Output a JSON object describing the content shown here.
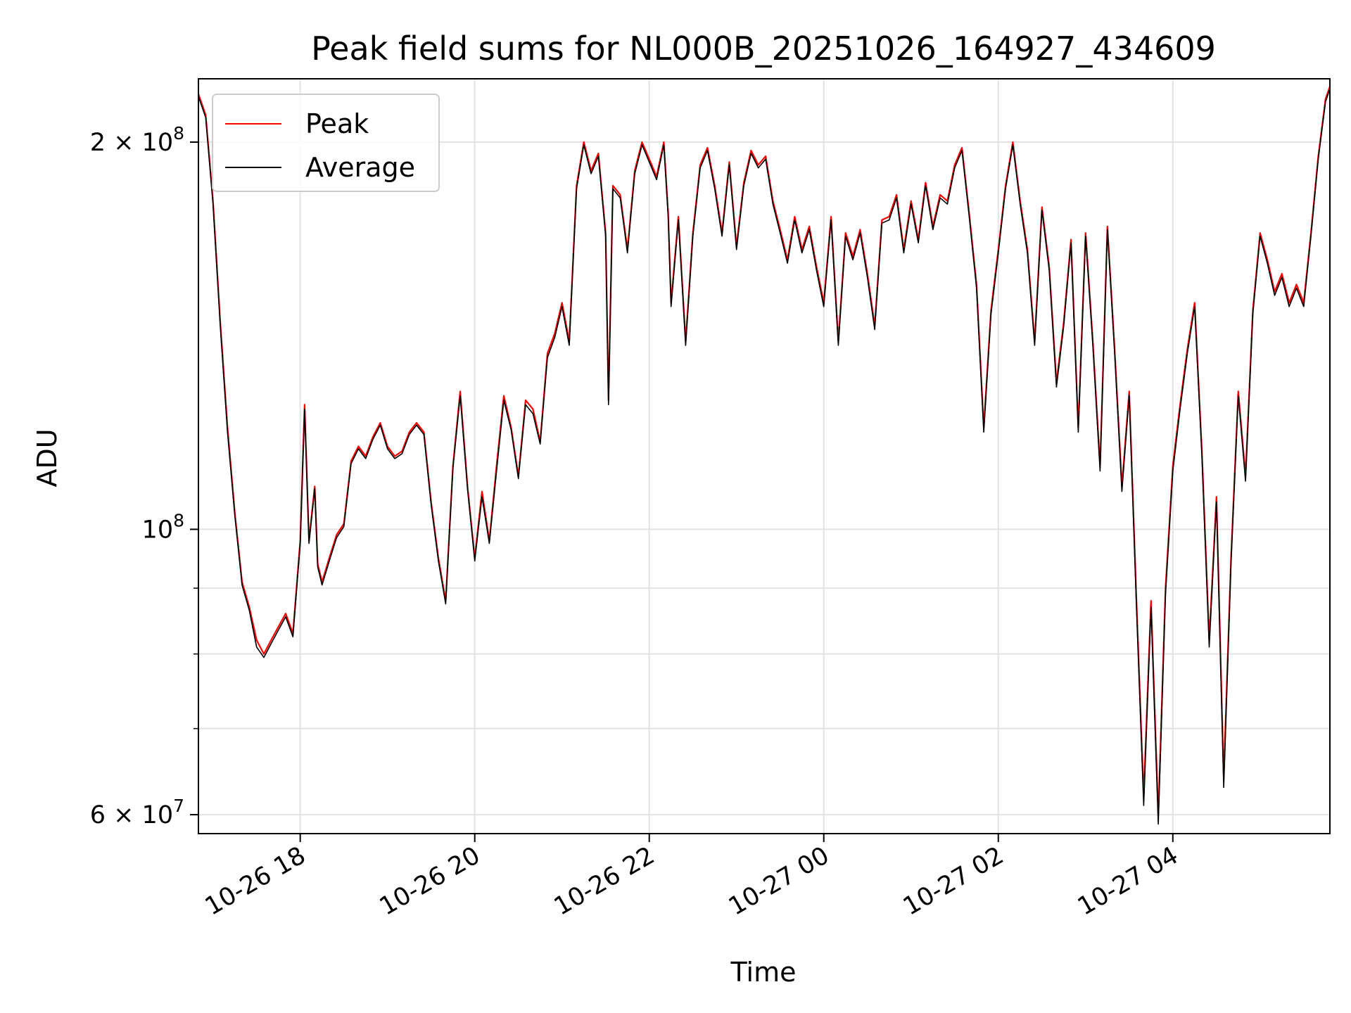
{
  "chart_data": {
    "type": "line",
    "title": "Peak field sums for NL000B_20251026_164927_434609",
    "xlabel": "Time",
    "ylabel": "ADU",
    "y_scale": "log",
    "ylim": [
      58000000,
      224000000
    ],
    "xlim": [
      "2025-10-26 16:50",
      "2025-10-27 05:48"
    ],
    "grid": true,
    "legend_position": "top-left",
    "x_ticks": [
      {
        "label": "10-26 18",
        "t": "2025-10-26 18:00"
      },
      {
        "label": "10-26 20",
        "t": "2025-10-26 20:00"
      },
      {
        "label": "10-26 22",
        "t": "2025-10-26 22:00"
      },
      {
        "label": "10-27 00",
        "t": "2025-10-27 00:00"
      },
      {
        "label": "10-27 02",
        "t": "2025-10-27 02:00"
      },
      {
        "label": "10-27 04",
        "t": "2025-10-27 04:00"
      }
    ],
    "y_ticks_major": [
      {
        "value": 60000000,
        "mantissa": "6 × 10",
        "exp": "7"
      },
      {
        "value": 100000000,
        "mantissa": "10",
        "exp": "8"
      },
      {
        "value": 200000000,
        "mantissa": "2 × 10",
        "exp": "8"
      }
    ],
    "y_ticks_minor": [
      70000000,
      80000000,
      90000000
    ],
    "series": [
      {
        "name": "Peak",
        "color": "#ff0000",
        "x": [
          "2025-10-26 16:50",
          "2025-10-26 16:55",
          "2025-10-26 17:00",
          "2025-10-26 17:05",
          "2025-10-26 17:10",
          "2025-10-26 17:15",
          "2025-10-26 17:20",
          "2025-10-26 17:25",
          "2025-10-26 17:30",
          "2025-10-26 17:35",
          "2025-10-26 17:40",
          "2025-10-26 17:45",
          "2025-10-26 17:50",
          "2025-10-26 17:55",
          "2025-10-26 18:00",
          "2025-10-26 18:03",
          "2025-10-26 18:06",
          "2025-10-26 18:10",
          "2025-10-26 18:12",
          "2025-10-26 18:15",
          "2025-10-26 18:20",
          "2025-10-26 18:25",
          "2025-10-26 18:30",
          "2025-10-26 18:35",
          "2025-10-26 18:40",
          "2025-10-26 18:45",
          "2025-10-26 18:50",
          "2025-10-26 18:55",
          "2025-10-26 19:00",
          "2025-10-26 19:05",
          "2025-10-26 19:10",
          "2025-10-26 19:15",
          "2025-10-26 19:20",
          "2025-10-26 19:25",
          "2025-10-26 19:30",
          "2025-10-26 19:35",
          "2025-10-26 19:40",
          "2025-10-26 19:45",
          "2025-10-26 19:50",
          "2025-10-26 19:55",
          "2025-10-26 20:00",
          "2025-10-26 20:05",
          "2025-10-26 20:10",
          "2025-10-26 20:15",
          "2025-10-26 20:20",
          "2025-10-26 20:25",
          "2025-10-26 20:30",
          "2025-10-26 20:35",
          "2025-10-26 20:40",
          "2025-10-26 20:45",
          "2025-10-26 20:50",
          "2025-10-26 20:55",
          "2025-10-26 21:00",
          "2025-10-26 21:05",
          "2025-10-26 21:10",
          "2025-10-26 21:15",
          "2025-10-26 21:20",
          "2025-10-26 21:25",
          "2025-10-26 21:30",
          "2025-10-26 21:32",
          "2025-10-26 21:35",
          "2025-10-26 21:40",
          "2025-10-26 21:45",
          "2025-10-26 21:50",
          "2025-10-26 21:55",
          "2025-10-26 22:00",
          "2025-10-26 22:05",
          "2025-10-26 22:10",
          "2025-10-26 22:13",
          "2025-10-26 22:15",
          "2025-10-26 22:20",
          "2025-10-26 22:25",
          "2025-10-26 22:30",
          "2025-10-26 22:35",
          "2025-10-26 22:40",
          "2025-10-26 22:45",
          "2025-10-26 22:50",
          "2025-10-26 22:55",
          "2025-10-26 23:00",
          "2025-10-26 23:05",
          "2025-10-26 23:10",
          "2025-10-26 23:15",
          "2025-10-26 23:20",
          "2025-10-26 23:25",
          "2025-10-26 23:30",
          "2025-10-26 23:35",
          "2025-10-26 23:40",
          "2025-10-26 23:45",
          "2025-10-26 23:50",
          "2025-10-26 23:55",
          "2025-10-27 00:00",
          "2025-10-27 00:05",
          "2025-10-27 00:10",
          "2025-10-27 00:15",
          "2025-10-27 00:20",
          "2025-10-27 00:25",
          "2025-10-27 00:30",
          "2025-10-27 00:35",
          "2025-10-27 00:40",
          "2025-10-27 00:45",
          "2025-10-27 00:50",
          "2025-10-27 00:55",
          "2025-10-27 01:00",
          "2025-10-27 01:05",
          "2025-10-27 01:10",
          "2025-10-27 01:15",
          "2025-10-27 01:20",
          "2025-10-27 01:25",
          "2025-10-27 01:30",
          "2025-10-27 01:35",
          "2025-10-27 01:40",
          "2025-10-27 01:45",
          "2025-10-27 01:50",
          "2025-10-27 01:55",
          "2025-10-27 02:00",
          "2025-10-27 02:05",
          "2025-10-27 02:10",
          "2025-10-27 02:15",
          "2025-10-27 02:20",
          "2025-10-27 02:25",
          "2025-10-27 02:30",
          "2025-10-27 02:35",
          "2025-10-27 02:40",
          "2025-10-27 02:45",
          "2025-10-27 02:50",
          "2025-10-27 02:55",
          "2025-10-27 03:00",
          "2025-10-27 03:05",
          "2025-10-27 03:10",
          "2025-10-27 03:15",
          "2025-10-27 03:20",
          "2025-10-27 03:25",
          "2025-10-27 03:30",
          "2025-10-27 03:35",
          "2025-10-27 03:40",
          "2025-10-27 03:45",
          "2025-10-27 03:50",
          "2025-10-27 03:55",
          "2025-10-27 04:00",
          "2025-10-27 04:05",
          "2025-10-27 04:10",
          "2025-10-27 04:15",
          "2025-10-27 04:20",
          "2025-10-27 04:25",
          "2025-10-27 04:30",
          "2025-10-27 04:35",
          "2025-10-27 04:40",
          "2025-10-27 04:45",
          "2025-10-27 04:50",
          "2025-10-27 04:55",
          "2025-10-27 05:00",
          "2025-10-27 05:05",
          "2025-10-27 05:10",
          "2025-10-27 05:15",
          "2025-10-27 05:20",
          "2025-10-27 05:25",
          "2025-10-27 05:30",
          "2025-10-27 05:35",
          "2025-10-27 05:40",
          "2025-10-27 05:45",
          "2025-10-27 05:48"
        ],
        "values": [
          218000000,
          210000000,
          180000000,
          145000000,
          120000000,
          103000000,
          91000000,
          87000000,
          82000000,
          80000000,
          82000000,
          84000000,
          86000000,
          83000000,
          98000000,
          125000000,
          98000000,
          108000000,
          94000000,
          91000000,
          95000000,
          99000000,
          101000000,
          113000000,
          116000000,
          114000000,
          118000000,
          121000000,
          116000000,
          114000000,
          115000000,
          119000000,
          121000000,
          119000000,
          105000000,
          95000000,
          88000000,
          112000000,
          128000000,
          108000000,
          95000000,
          107000000,
          98000000,
          112000000,
          127000000,
          120000000,
          110000000,
          126000000,
          124000000,
          117000000,
          137000000,
          142000000,
          150000000,
          140000000,
          185000000,
          200000000,
          190000000,
          196000000,
          170000000,
          126000000,
          185000000,
          182000000,
          165000000,
          190000000,
          200000000,
          194000000,
          188000000,
          200000000,
          176000000,
          150000000,
          175000000,
          140000000,
          170000000,
          192000000,
          198000000,
          185000000,
          170000000,
          193000000,
          166000000,
          186000000,
          197000000,
          192000000,
          195000000,
          180000000,
          171000000,
          162000000,
          175000000,
          165000000,
          172000000,
          160000000,
          150000000,
          175000000,
          140000000,
          170000000,
          163000000,
          171000000,
          158000000,
          144000000,
          174000000,
          175000000,
          182000000,
          165000000,
          180000000,
          168000000,
          186000000,
          172000000,
          182000000,
          180000000,
          192000000,
          198000000,
          176000000,
          155000000,
          120000000,
          148000000,
          165000000,
          185000000,
          200000000,
          180000000,
          165000000,
          140000000,
          178000000,
          160000000,
          130000000,
          145000000,
          168000000,
          120000000,
          170000000,
          140000000,
          112000000,
          172000000,
          138000000,
          108000000,
          128000000,
          88000000,
          62000000,
          88000000,
          60000000,
          90000000,
          112000000,
          125000000,
          138000000,
          150000000,
          115000000,
          82000000,
          106000000,
          64000000,
          95000000,
          128000000,
          110000000,
          148000000,
          170000000,
          162000000,
          153000000,
          158000000,
          150000000,
          155000000,
          150000000,
          170000000,
          195000000,
          216000000,
          221000000
        ]
      },
      {
        "name": "Average",
        "color": "#000000",
        "x": [
          "2025-10-26 16:50",
          "2025-10-26 16:55",
          "2025-10-26 17:00",
          "2025-10-26 17:05",
          "2025-10-26 17:10",
          "2025-10-26 17:15",
          "2025-10-26 17:20",
          "2025-10-26 17:25",
          "2025-10-26 17:30",
          "2025-10-26 17:35",
          "2025-10-26 17:40",
          "2025-10-26 17:45",
          "2025-10-26 17:50",
          "2025-10-26 17:55",
          "2025-10-26 18:00",
          "2025-10-26 18:03",
          "2025-10-26 18:06",
          "2025-10-26 18:10",
          "2025-10-26 18:12",
          "2025-10-26 18:15",
          "2025-10-26 18:20",
          "2025-10-26 18:25",
          "2025-10-26 18:30",
          "2025-10-26 18:35",
          "2025-10-26 18:40",
          "2025-10-26 18:45",
          "2025-10-26 18:50",
          "2025-10-26 18:55",
          "2025-10-26 19:00",
          "2025-10-26 19:05",
          "2025-10-26 19:10",
          "2025-10-26 19:15",
          "2025-10-26 19:20",
          "2025-10-26 19:25",
          "2025-10-26 19:30",
          "2025-10-26 19:35",
          "2025-10-26 19:40",
          "2025-10-26 19:45",
          "2025-10-26 19:50",
          "2025-10-26 19:55",
          "2025-10-26 20:00",
          "2025-10-26 20:05",
          "2025-10-26 20:10",
          "2025-10-26 20:15",
          "2025-10-26 20:20",
          "2025-10-26 20:25",
          "2025-10-26 20:30",
          "2025-10-26 20:35",
          "2025-10-26 20:40",
          "2025-10-26 20:45",
          "2025-10-26 20:50",
          "2025-10-26 20:55",
          "2025-10-26 21:00",
          "2025-10-26 21:05",
          "2025-10-26 21:10",
          "2025-10-26 21:15",
          "2025-10-26 21:20",
          "2025-10-26 21:25",
          "2025-10-26 21:30",
          "2025-10-26 21:32",
          "2025-10-26 21:35",
          "2025-10-26 21:40",
          "2025-10-26 21:45",
          "2025-10-26 21:50",
          "2025-10-26 21:55",
          "2025-10-26 22:00",
          "2025-10-26 22:05",
          "2025-10-26 22:10",
          "2025-10-26 22:13",
          "2025-10-26 22:15",
          "2025-10-26 22:20",
          "2025-10-26 22:25",
          "2025-10-26 22:30",
          "2025-10-26 22:35",
          "2025-10-26 22:40",
          "2025-10-26 22:45",
          "2025-10-26 22:50",
          "2025-10-26 22:55",
          "2025-10-26 23:00",
          "2025-10-26 23:05",
          "2025-10-26 23:10",
          "2025-10-26 23:15",
          "2025-10-26 23:20",
          "2025-10-26 23:25",
          "2025-10-26 23:30",
          "2025-10-26 23:35",
          "2025-10-26 23:40",
          "2025-10-26 23:45",
          "2025-10-26 23:50",
          "2025-10-26 23:55",
          "2025-10-27 00:00",
          "2025-10-27 00:05",
          "2025-10-27 00:10",
          "2025-10-27 00:15",
          "2025-10-27 00:20",
          "2025-10-27 00:25",
          "2025-10-27 00:30",
          "2025-10-27 00:35",
          "2025-10-27 00:40",
          "2025-10-27 00:45",
          "2025-10-27 00:50",
          "2025-10-27 00:55",
          "2025-10-27 01:00",
          "2025-10-27 01:05",
          "2025-10-27 01:10",
          "2025-10-27 01:15",
          "2025-10-27 01:20",
          "2025-10-27 01:25",
          "2025-10-27 01:30",
          "2025-10-27 01:35",
          "2025-10-27 01:40",
          "2025-10-27 01:45",
          "2025-10-27 01:50",
          "2025-10-27 01:55",
          "2025-10-27 02:00",
          "2025-10-27 02:05",
          "2025-10-27 02:10",
          "2025-10-27 02:15",
          "2025-10-27 02:20",
          "2025-10-27 02:25",
          "2025-10-27 02:30",
          "2025-10-27 02:35",
          "2025-10-27 02:40",
          "2025-10-27 02:45",
          "2025-10-27 02:50",
          "2025-10-27 02:55",
          "2025-10-27 03:00",
          "2025-10-27 03:05",
          "2025-10-27 03:10",
          "2025-10-27 03:15",
          "2025-10-27 03:20",
          "2025-10-27 03:25",
          "2025-10-27 03:30",
          "2025-10-27 03:35",
          "2025-10-27 03:40",
          "2025-10-27 03:45",
          "2025-10-27 03:50",
          "2025-10-27 03:55",
          "2025-10-27 04:00",
          "2025-10-27 04:05",
          "2025-10-27 04:10",
          "2025-10-27 04:15",
          "2025-10-27 04:20",
          "2025-10-27 04:25",
          "2025-10-27 04:30",
          "2025-10-27 04:35",
          "2025-10-27 04:40",
          "2025-10-27 04:45",
          "2025-10-27 04:50",
          "2025-10-27 04:55",
          "2025-10-27 05:00",
          "2025-10-27 05:05",
          "2025-10-27 05:10",
          "2025-10-27 05:15",
          "2025-10-27 05:20",
          "2025-10-27 05:25",
          "2025-10-27 05:30",
          "2025-10-27 05:35",
          "2025-10-27 05:40",
          "2025-10-27 05:45",
          "2025-10-27 05:48"
        ],
        "values": [
          217000000,
          209000000,
          179000000,
          144000000,
          119000000,
          102500000,
          90500000,
          86500000,
          81000000,
          79500000,
          81500000,
          83500000,
          85500000,
          82500000,
          97500000,
          124000000,
          97500000,
          107500000,
          93500000,
          90500000,
          94500000,
          98500000,
          100500000,
          112500000,
          115500000,
          113500000,
          117500000,
          120500000,
          115500000,
          113500000,
          114500000,
          118500000,
          120500000,
          118500000,
          104500000,
          94500000,
          87500000,
          111500000,
          127000000,
          107500000,
          94500000,
          106000000,
          97500000,
          111000000,
          126000000,
          119500000,
          109500000,
          125000000,
          123000000,
          116500000,
          136000000,
          141000000,
          149000000,
          139000000,
          184000000,
          199000000,
          189000000,
          195000000,
          169000000,
          125000000,
          184000000,
          181000000,
          164000000,
          189000000,
          199000000,
          193000000,
          187000000,
          199000000,
          175000000,
          149000000,
          174000000,
          139000000,
          169000000,
          191000000,
          197000000,
          184000000,
          169000000,
          192000000,
          165000000,
          185000000,
          196000000,
          191000000,
          194000000,
          179000000,
          170000000,
          161000000,
          174000000,
          164000000,
          171000000,
          159000000,
          149000000,
          174000000,
          139000000,
          169000000,
          162000000,
          170000000,
          157000000,
          143000000,
          173000000,
          174000000,
          181000000,
          164000000,
          179000000,
          167000000,
          185000000,
          171000000,
          181000000,
          179000000,
          191000000,
          197000000,
          175000000,
          154000000,
          119000000,
          147000000,
          164000000,
          184000000,
          199000000,
          179000000,
          164000000,
          139000000,
          177000000,
          159000000,
          129000000,
          144000000,
          167000000,
          119000000,
          169000000,
          139000000,
          111000000,
          171000000,
          137000000,
          107000000,
          127000000,
          87000000,
          61000000,
          87000000,
          59000000,
          89000000,
          111000000,
          124000000,
          137000000,
          149000000,
          114000000,
          81000000,
          105000000,
          63000000,
          94000000,
          127000000,
          109000000,
          147000000,
          169000000,
          161000000,
          152000000,
          157000000,
          149000000,
          154000000,
          149000000,
          169000000,
          194000000,
          215000000,
          220000000
        ]
      }
    ]
  }
}
